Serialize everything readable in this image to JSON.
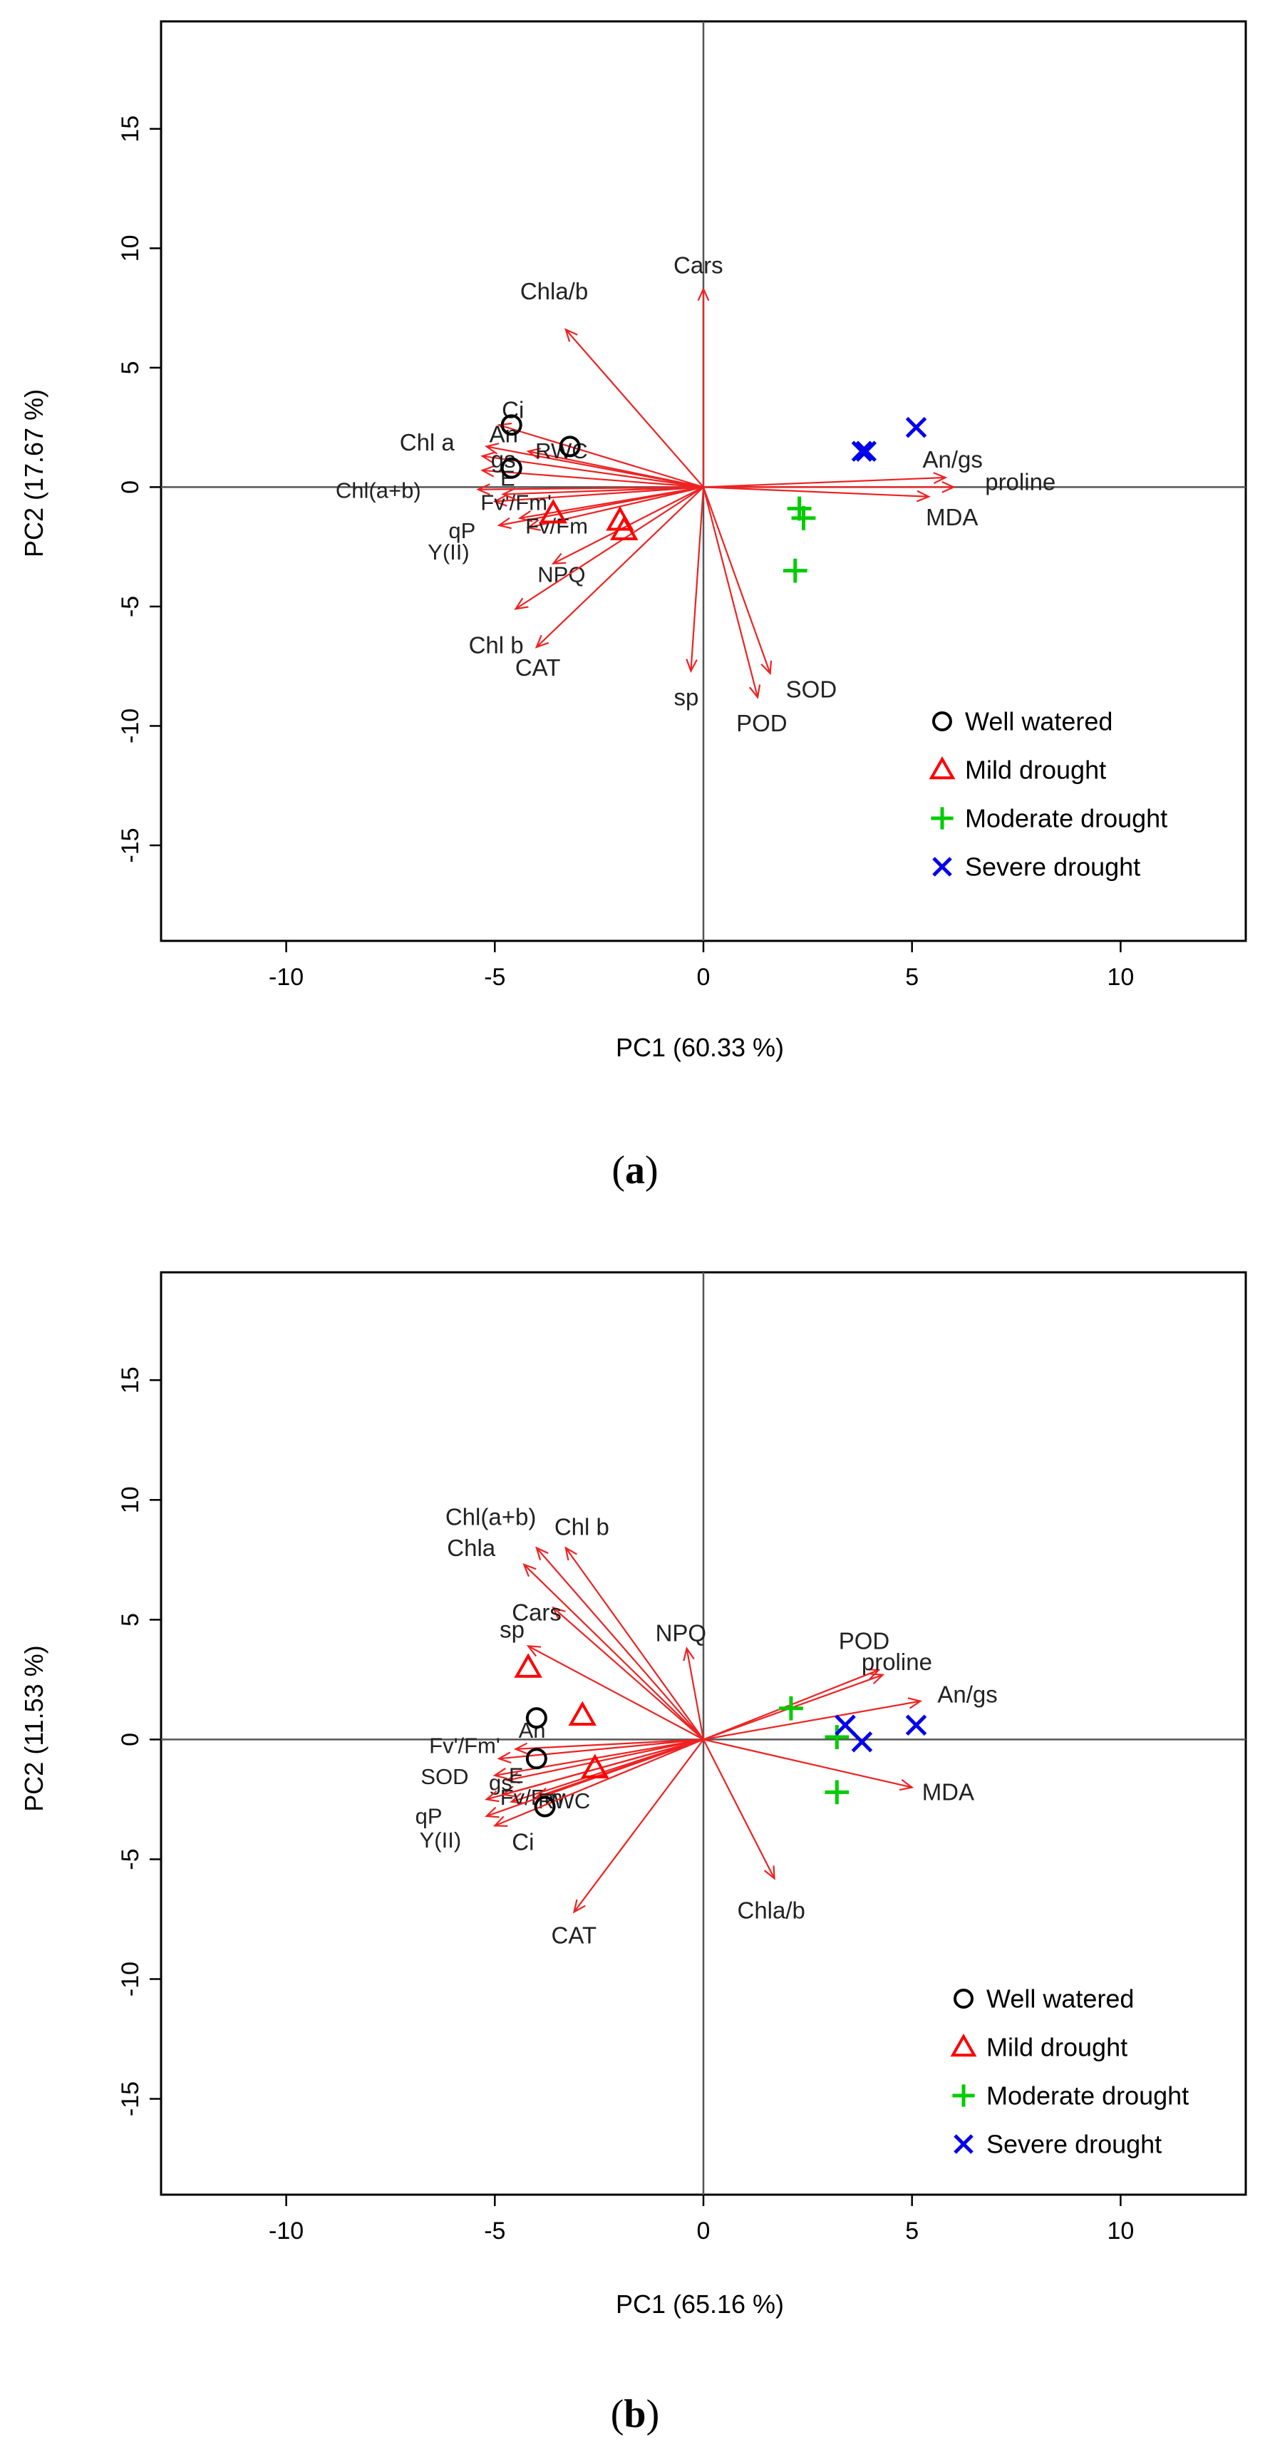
{
  "chart_data": [
    {
      "type": "biplot",
      "panel": "a",
      "panel_label": "a",
      "xlabel": "PC1 (60.33 %)",
      "ylabel": "PC2 (17.67 %)",
      "xlim": [
        -13,
        13
      ],
      "ylim": [
        -19,
        19.5
      ],
      "xticks": [
        -10,
        -5,
        0,
        5,
        10
      ],
      "yticks": [
        -15,
        -10,
        -5,
        0,
        5,
        10,
        15
      ],
      "loadings": [
        {
          "label": "Cars",
          "x": 0.0,
          "y": 8.3
        },
        {
          "label": "Chla/b",
          "x": -3.3,
          "y": 6.6
        },
        {
          "label": "Ci",
          "x": -4.9,
          "y": 2.6
        },
        {
          "label": "An",
          "x": -5.2,
          "y": 1.7
        },
        {
          "label": "RWC",
          "x": -4.2,
          "y": 1.5
        },
        {
          "label": "Chl a",
          "x": -5.3,
          "y": 1.3
        },
        {
          "label": "gs",
          "x": -5.3,
          "y": 0.7
        },
        {
          "label": "Chl(a+b)",
          "x": -5.4,
          "y": -0.1
        },
        {
          "label": "Fv'/Fm'",
          "x": -5.0,
          "y": -0.6
        },
        {
          "label": "E",
          "x": -4.8,
          "y": -0.3
        },
        {
          "label": "Y(II)",
          "x": -4.9,
          "y": -1.6
        },
        {
          "label": "qP",
          "x": -4.4,
          "y": -1.3
        },
        {
          "label": "Fv/Fm",
          "x": -4.2,
          "y": -1.7
        },
        {
          "label": "NPQ",
          "x": -3.6,
          "y": -3.2
        },
        {
          "label": "Chl b",
          "x": -4.5,
          "y": -5.1
        },
        {
          "label": "CAT",
          "x": -4.0,
          "y": -6.7
        },
        {
          "label": "sp",
          "x": -0.3,
          "y": -7.7
        },
        {
          "label": "SOD",
          "x": 1.6,
          "y": -7.8
        },
        {
          "label": "POD",
          "x": 1.3,
          "y": -8.8
        },
        {
          "label": "An/gs",
          "x": 5.8,
          "y": 0.4
        },
        {
          "label": "proline",
          "x": 6.0,
          "y": 0.0
        },
        {
          "label": "MDA",
          "x": 5.4,
          "y": -0.4
        }
      ],
      "scores": [
        {
          "group": "Well watered",
          "x": -4.6,
          "y": 2.6
        },
        {
          "group": "Well watered",
          "x": -3.2,
          "y": 1.7
        },
        {
          "group": "Well watered",
          "x": -4.6,
          "y": 0.8
        },
        {
          "group": "Mild drought",
          "x": -3.6,
          "y": -1.1
        },
        {
          "group": "Mild drought",
          "x": -2.0,
          "y": -1.4
        },
        {
          "group": "Mild drought",
          "x": -1.9,
          "y": -1.8
        },
        {
          "group": "Moderate drought",
          "x": 2.3,
          "y": -0.9
        },
        {
          "group": "Moderate drought",
          "x": 2.4,
          "y": -1.3
        },
        {
          "group": "Moderate drought",
          "x": 2.2,
          "y": -3.5
        },
        {
          "group": "Severe drought",
          "x": 3.8,
          "y": 1.5
        },
        {
          "group": "Severe drought",
          "x": 3.9,
          "y": 1.5
        },
        {
          "group": "Severe drought",
          "x": 5.1,
          "y": 2.5
        }
      ],
      "legend": [
        "Well watered",
        "Mild drought",
        "Moderate drought",
        "Severe drought"
      ],
      "legend_position": "bottom-right"
    },
    {
      "type": "biplot",
      "panel": "b",
      "panel_label": "b",
      "xlabel": "PC1 (65.16 %)",
      "ylabel": "PC2 (11.53 %)",
      "xlim": [
        -13,
        13
      ],
      "ylim": [
        -19,
        19.5
      ],
      "xticks": [
        -10,
        -5,
        0,
        5,
        10
      ],
      "yticks": [
        -15,
        -10,
        -5,
        0,
        5,
        10,
        15
      ],
      "loadings": [
        {
          "label": "Chl(a+b)",
          "x": -4.0,
          "y": 8.0
        },
        {
          "label": "Chl b",
          "x": -3.3,
          "y": 8.0
        },
        {
          "label": "Chla",
          "x": -4.3,
          "y": 7.3
        },
        {
          "label": "Cars",
          "x": -3.6,
          "y": 5.5
        },
        {
          "label": "sp",
          "x": -4.2,
          "y": 3.9
        },
        {
          "label": "NPQ",
          "x": -0.4,
          "y": 3.8
        },
        {
          "label": "POD",
          "x": 4.3,
          "y": 2.7
        },
        {
          "label": "proline",
          "x": 4.2,
          "y": 2.9
        },
        {
          "label": "An/gs",
          "x": 5.2,
          "y": 1.6
        },
        {
          "label": "MDA",
          "x": 5.0,
          "y": -2.0
        },
        {
          "label": "Chla/b",
          "x": 1.7,
          "y": -5.8
        },
        {
          "label": "CAT",
          "x": -3.1,
          "y": -7.2
        },
        {
          "label": "Fv'/Fm'",
          "x": -4.9,
          "y": -0.8
        },
        {
          "label": "An",
          "x": -4.5,
          "y": -0.4
        },
        {
          "label": "SOD",
          "x": -5.0,
          "y": -1.5
        },
        {
          "label": "E",
          "x": -4.7,
          "y": -1.7
        },
        {
          "label": "gs",
          "x": -4.8,
          "y": -2.3
        },
        {
          "label": "Fv/Fm",
          "x": -4.6,
          "y": -2.6
        },
        {
          "label": "qP",
          "x": -5.2,
          "y": -2.5
        },
        {
          "label": "Y(II)",
          "x": -5.2,
          "y": -3.2
        },
        {
          "label": "RWC",
          "x": -4.0,
          "y": -2.4
        },
        {
          "label": "Ci",
          "x": -5.0,
          "y": -3.6
        }
      ],
      "scores": [
        {
          "group": "Well watered",
          "x": -4.0,
          "y": 0.9
        },
        {
          "group": "Well watered",
          "x": -4.0,
          "y": -0.8
        },
        {
          "group": "Well watered",
          "x": -3.8,
          "y": -2.8
        },
        {
          "group": "Mild drought",
          "x": -4.2,
          "y": 3.0
        },
        {
          "group": "Mild drought",
          "x": -2.9,
          "y": 1.0
        },
        {
          "group": "Mild drought",
          "x": -2.6,
          "y": -1.2
        },
        {
          "group": "Moderate drought",
          "x": 2.1,
          "y": 1.3
        },
        {
          "group": "Moderate drought",
          "x": 3.2,
          "y": 0.1
        },
        {
          "group": "Moderate drought",
          "x": 3.2,
          "y": -2.2
        },
        {
          "group": "Severe drought",
          "x": 3.4,
          "y": 0.6
        },
        {
          "group": "Severe drought",
          "x": 3.8,
          "y": -0.1
        },
        {
          "group": "Severe drought",
          "x": 5.1,
          "y": 0.6
        }
      ],
      "legend": [
        "Well watered",
        "Mild drought",
        "Moderate drought",
        "Severe drought"
      ],
      "legend_position": "bottom-right"
    }
  ],
  "group_styles": {
    "Well watered": {
      "marker": "circle",
      "color": "#000000"
    },
    "Mild drought": {
      "marker": "triangle",
      "color": "#ff0000"
    },
    "Moderate drought": {
      "marker": "plus",
      "color": "#00cc00"
    },
    "Severe drought": {
      "marker": "cross",
      "color": "#0000ee"
    }
  },
  "arrow_color": "#ee2222"
}
